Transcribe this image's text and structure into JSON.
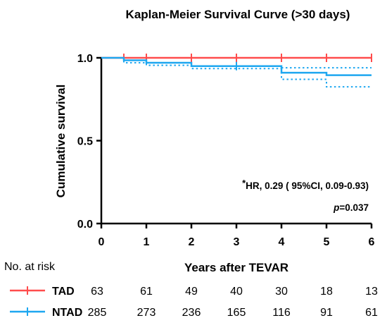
{
  "chart_data": {
    "type": "line",
    "title": "Kaplan-Meier Survival Curve (>30 days)",
    "xlabel": "Years after TEVAR",
    "ylabel": "Cumulative survival",
    "xlim": [
      0,
      6
    ],
    "ylim": [
      0,
      1.0
    ],
    "x_ticks": [
      "0",
      "1",
      "2",
      "3",
      "4",
      "5",
      "6"
    ],
    "y_ticks": [
      "0.0",
      "0.5",
      "1.0"
    ],
    "grid": false,
    "series": [
      {
        "name": "TAD",
        "color": "#ff4d4d",
        "steps": [
          [
            0,
            1.0
          ],
          [
            6,
            1.0
          ]
        ],
        "censor_marks": [
          0.5,
          1,
          2,
          3,
          4,
          5,
          6
        ]
      },
      {
        "name": "NTAD",
        "color": "#1ea7f0",
        "steps": [
          [
            0,
            1.0
          ],
          [
            0.5,
            0.985
          ],
          [
            1,
            0.97
          ],
          [
            2,
            0.95
          ],
          [
            4,
            0.91
          ],
          [
            5,
            0.895
          ],
          [
            6,
            0.895
          ]
        ],
        "ci_lower": [
          [
            0,
            1.0
          ],
          [
            0.5,
            0.97
          ],
          [
            1,
            0.955
          ],
          [
            2,
            0.935
          ],
          [
            4,
            0.87
          ],
          [
            5,
            0.825
          ],
          [
            6,
            0.825
          ]
        ],
        "ci_upper": [
          [
            4,
            0.94
          ],
          [
            5,
            0.94
          ],
          [
            6,
            0.94
          ]
        ],
        "censor_marks": [
          3
        ]
      }
    ],
    "annotations": {
      "hr_star": "*",
      "hr_text": "HR, 0.29 ( 95%CI, 0.09-0.93)",
      "p_label": "p",
      "p_value": "=0.037"
    },
    "risk_table": {
      "header": "No. at risk",
      "rows": [
        {
          "label": "TAD",
          "color": "#ff4d4d",
          "values": [
            "63",
            "61",
            "49",
            "40",
            "30",
            "18",
            "13"
          ]
        },
        {
          "label": "NTAD",
          "color": "#1ea7f0",
          "values": [
            "285",
            "273",
            "236",
            "165",
            "116",
            "91",
            "61"
          ]
        }
      ]
    }
  }
}
